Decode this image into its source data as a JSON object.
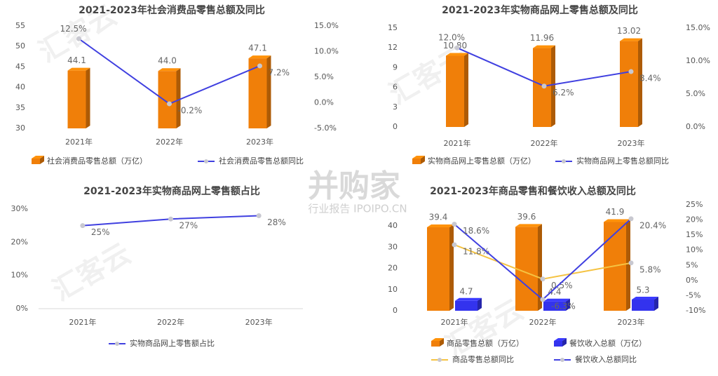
{
  "watermark": {
    "logo": "并购家",
    "site": "行业报告 IPOIPO.CN",
    "faint": "汇客云"
  },
  "chart_data": [
    {
      "type": "combo",
      "title": "2021-2023年社会消费品零售总额及同比",
      "categories": [
        "2021年",
        "2022年",
        "2023年"
      ],
      "ylim": [
        30,
        55
      ],
      "yticks": [
        30,
        35,
        40,
        45,
        50,
        55
      ],
      "y2lim": [
        -5,
        15
      ],
      "y2ticks": [
        {
          "value": -5,
          "label": "-5.0%"
        },
        {
          "value": 0,
          "label": "0.0%"
        },
        {
          "value": 5,
          "label": "5.0%"
        },
        {
          "value": 10,
          "label": "10.0%"
        },
        {
          "value": 15,
          "label": "15.0%"
        }
      ],
      "series": [
        {
          "name": "社会消费品零售总额（万亿）",
          "type": "bar",
          "color": "#f07f09",
          "values": [
            44.1,
            44.0,
            47.1
          ],
          "value_labels": [
            "44.1",
            "44.0",
            "47.1"
          ]
        },
        {
          "name": "社会消费品零售总额同比",
          "type": "line",
          "axis": "y2",
          "color": "#4040e0",
          "values": [
            12.5,
            -0.2,
            7.2
          ],
          "value_labels": [
            "12.5%",
            "-0.2%",
            "7.2%"
          ]
        }
      ]
    },
    {
      "type": "combo",
      "title": "2021-2023年实物商品网上零售总额及同比",
      "categories": [
        "2021年",
        "2022年",
        "2023年"
      ],
      "ylim": [
        0,
        15
      ],
      "yticks": [
        0,
        3,
        6,
        9,
        12,
        15
      ],
      "y2lim": [
        0,
        15
      ],
      "y2ticks": [
        {
          "value": 0,
          "label": "0.0%"
        },
        {
          "value": 5,
          "label": "5.0%"
        },
        {
          "value": 10,
          "label": "10.0%"
        },
        {
          "value": 15,
          "label": "15.0%"
        }
      ],
      "series": [
        {
          "name": "实物商品网上零售总额（万亿）",
          "type": "bar",
          "color": "#f07f09",
          "values": [
            10.8,
            11.96,
            13.02
          ],
          "value_labels": [
            "10.80",
            "11.96",
            "13.02"
          ]
        },
        {
          "name": "实物商品网上零售总额同比",
          "type": "line",
          "axis": "y2",
          "color": "#4040e0",
          "values": [
            12.0,
            6.2,
            8.4
          ],
          "value_labels": [
            "12.0%",
            "6.2%",
            "8.4%"
          ]
        }
      ]
    },
    {
      "type": "line",
      "title": "2021-2023年实物商品网上零售额占比",
      "categories": [
        "2021年",
        "2022年",
        "2023年"
      ],
      "ylim": [
        0,
        30
      ],
      "yticks": [
        {
          "value": 0,
          "label": "0%"
        },
        {
          "value": 10,
          "label": "10%"
        },
        {
          "value": 20,
          "label": "20%"
        },
        {
          "value": 30,
          "label": "30%"
        }
      ],
      "series": [
        {
          "name": "实物商品网上零售额占比",
          "type": "line",
          "color": "#4040e0",
          "values": [
            25,
            27,
            28
          ],
          "value_labels": [
            "25%",
            "27%",
            "28%"
          ]
        }
      ]
    },
    {
      "type": "combo",
      "title": "2021-2023年商品零售和餐饮收入总额及同比",
      "categories": [
        "2021年",
        "2022年",
        "2023年"
      ],
      "ylim": [
        0,
        50
      ],
      "yticks": [
        0,
        10,
        20,
        30,
        40
      ],
      "y2lim": [
        -10,
        25
      ],
      "y2ticks": [
        {
          "value": -10,
          "label": "-10%"
        },
        {
          "value": -5,
          "label": "-5%"
        },
        {
          "value": 0,
          "label": "0%"
        },
        {
          "value": 5,
          "label": "5%"
        },
        {
          "value": 10,
          "label": "10%"
        },
        {
          "value": 15,
          "label": "15%"
        },
        {
          "value": 20,
          "label": "20%"
        },
        {
          "value": 25,
          "label": "25%"
        }
      ],
      "series": [
        {
          "name": "商品零售总额（万亿）",
          "type": "bar",
          "color": "#f07f09",
          "values": [
            39.4,
            39.6,
            41.9
          ]
        },
        {
          "name": "餐饮收入总额（万亿）",
          "type": "bar",
          "color": "#3333ee",
          "values": [
            4.7,
            4.4,
            5.3
          ]
        },
        {
          "name": "商品零售总额同比",
          "type": "line",
          "axis": "y2",
          "color": "#f5c342",
          "values": [
            11.8,
            0.5,
            5.8
          ],
          "value_labels": [
            "11.8%",
            "0.5%",
            "5.8%"
          ]
        },
        {
          "name": "餐饮收入总额同比",
          "type": "line",
          "axis": "y2",
          "color": "#4040e0",
          "values": [
            18.6,
            -6.3,
            20.4
          ],
          "value_labels": [
            "18.6%",
            "-6.3%",
            "20.4%"
          ]
        }
      ]
    }
  ]
}
